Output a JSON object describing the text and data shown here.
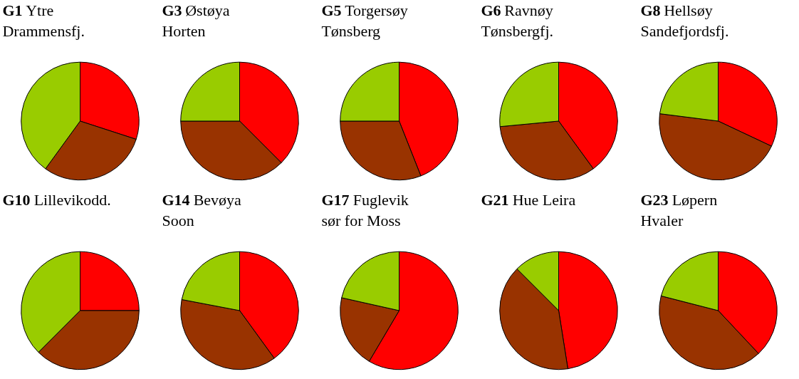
{
  "chart_data": [
    {
      "type": "pie",
      "title": "G1 Ytre\nDrammensfj.",
      "categories": [
        null,
        null,
        null
      ],
      "values": [
        30,
        30,
        40
      ],
      "colors": [
        "#ff0000",
        "#993300",
        "#99cc00"
      ]
    },
    {
      "type": "pie",
      "title": "G3 Østøya\nHorten",
      "categories": [
        null,
        null,
        null
      ],
      "values": [
        37.5,
        37.5,
        25
      ],
      "colors": [
        "#ff0000",
        "#993300",
        "#99cc00"
      ]
    },
    {
      "type": "pie",
      "title": "G5 Torgersøy\nTønsberg",
      "categories": [
        null,
        null,
        null
      ],
      "values": [
        44,
        31,
        25
      ],
      "colors": [
        "#ff0000",
        "#993300",
        "#99cc00"
      ]
    },
    {
      "type": "pie",
      "title": "G6 Ravnøy\nTønsbergfj.",
      "categories": [
        null,
        null,
        null
      ],
      "values": [
        40,
        33.5,
        26.5
      ],
      "colors": [
        "#ff0000",
        "#993300",
        "#99cc00"
      ]
    },
    {
      "type": "pie",
      "title": "G8 Hellsøy\nSandefjordsfj.",
      "categories": [
        null,
        null,
        null
      ],
      "values": [
        32,
        45,
        23
      ],
      "colors": [
        "#ff0000",
        "#993300",
        "#99cc00"
      ]
    },
    {
      "type": "pie",
      "title": "G10 Lillevikodd.",
      "categories": [
        null,
        null,
        null
      ],
      "values": [
        25,
        37.5,
        37.5
      ],
      "colors": [
        "#ff0000",
        "#993300",
        "#99cc00"
      ]
    },
    {
      "type": "pie",
      "title": "G14 Bevøya\nSoon",
      "categories": [
        null,
        null,
        null
      ],
      "values": [
        40,
        38,
        22
      ],
      "colors": [
        "#ff0000",
        "#993300",
        "#99cc00"
      ]
    },
    {
      "type": "pie",
      "title": "G17 Fuglevik\nsør for Moss",
      "categories": [
        null,
        null,
        null
      ],
      "values": [
        58.5,
        20,
        21.5
      ],
      "colors": [
        "#ff0000",
        "#993300",
        "#99cc00"
      ]
    },
    {
      "type": "pie",
      "title": "G21 Hue Leira",
      "categories": [
        null,
        null,
        null
      ],
      "values": [
        47.5,
        40,
        12.5
      ],
      "colors": [
        "#ff0000",
        "#993300",
        "#99cc00"
      ]
    },
    {
      "type": "pie",
      "title": "G23 Løpern\nHvaler",
      "categories": [
        null,
        null,
        null
      ],
      "values": [
        38,
        41,
        21
      ],
      "colors": [
        "#ff0000",
        "#993300",
        "#99cc00"
      ]
    }
  ]
}
